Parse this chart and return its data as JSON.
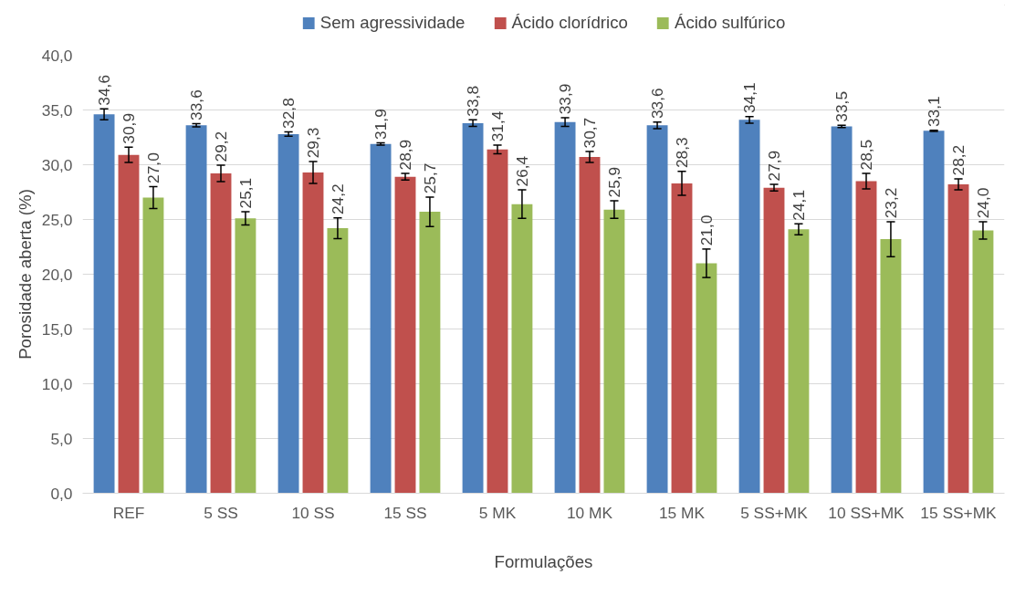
{
  "chart_data": {
    "type": "bar",
    "xlabel": "Formulações",
    "ylabel": "Porosidade aberta (%)",
    "categories": [
      "REF",
      "5 SS",
      "10 SS",
      "15 SS",
      "5 MK",
      "10 MK",
      "15 MK",
      "5 SS+MK",
      "10 SS+MK",
      "15 SS+MK"
    ],
    "series": [
      {
        "name": "Sem agressividade",
        "color": "#4f81bd",
        "values": [
          34.6,
          33.6,
          32.8,
          31.9,
          33.8,
          33.9,
          33.6,
          34.1,
          33.5,
          33.1
        ],
        "errors": [
          0.5,
          0.15,
          0.2,
          0.1,
          0.3,
          0.4,
          0.3,
          0.3,
          0.1,
          0.05
        ],
        "value_labels": [
          "34,6",
          "33,6",
          "32,8",
          "31,9",
          "33,8",
          "33,9",
          "33,6",
          "34,1",
          "33,5",
          "33,1"
        ]
      },
      {
        "name": "Ácido clorídrico",
        "color": "#c0504d",
        "values": [
          30.9,
          29.2,
          29.3,
          28.9,
          31.4,
          30.7,
          28.3,
          27.9,
          28.5,
          28.2
        ],
        "errors": [
          0.7,
          0.75,
          1.0,
          0.3,
          0.4,
          0.5,
          1.1,
          0.3,
          0.7,
          0.5
        ],
        "value_labels": [
          "30,9",
          "29,2",
          "29,3",
          "28,9",
          "31,4",
          "30,7",
          "28,3",
          "27,9",
          "28,5",
          "28,2"
        ]
      },
      {
        "name": "Ácido sulfúrico",
        "color": "#9bbb59",
        "values": [
          27.0,
          25.1,
          24.2,
          25.7,
          26.4,
          25.9,
          21.0,
          24.1,
          23.2,
          24.0
        ],
        "errors": [
          1.0,
          0.6,
          0.95,
          1.35,
          1.3,
          0.8,
          1.3,
          0.5,
          1.6,
          0.8
        ],
        "value_labels": [
          "27,0",
          "25,1",
          "24,2",
          "25,7",
          "26,4",
          "25,9",
          "21,0",
          "24,1",
          "23,2",
          "24,0"
        ]
      }
    ],
    "ylim": [
      0,
      40
    ],
    "yticks": [
      {
        "value": 0,
        "label": "0,0"
      },
      {
        "value": 5,
        "label": "5,0"
      },
      {
        "value": 10,
        "label": "10,0"
      },
      {
        "value": 15,
        "label": "15,0"
      },
      {
        "value": 20,
        "label": "20,0"
      },
      {
        "value": 25,
        "label": "25,0"
      },
      {
        "value": 30,
        "label": "30,0"
      },
      {
        "value": 35,
        "label": "35,0"
      },
      {
        "value": 40,
        "label": "40,0"
      }
    ],
    "grid": "y",
    "legend": "top"
  }
}
